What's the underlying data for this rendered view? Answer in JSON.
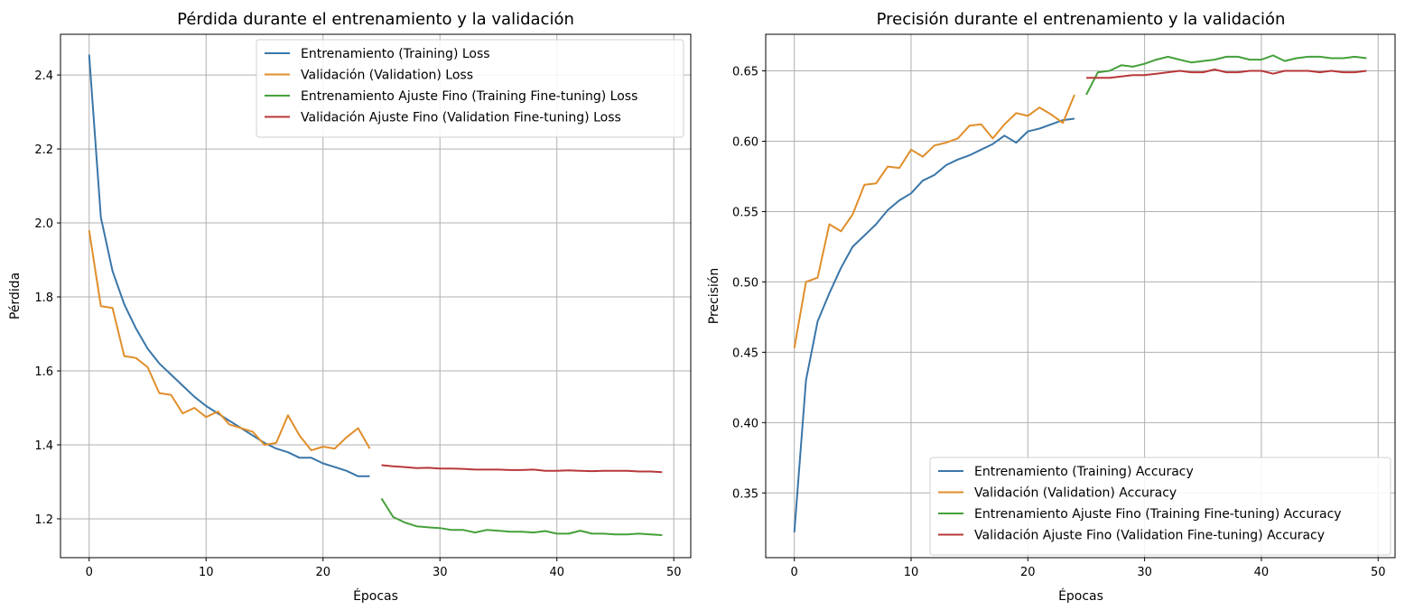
{
  "colors": {
    "train": "#3a76a8",
    "val": "#e08e2b",
    "ft_train": "#44a03a",
    "ft_val": "#b8383a",
    "grid": "#b0b0b0"
  },
  "chart_data": [
    {
      "type": "line",
      "title": "Pérdida durante el entrenamiento y la validación",
      "xlabel": "Épocas",
      "ylabel": "Pérdida",
      "xlim": [
        -2.45,
        51.45
      ],
      "ylim": [
        1.095,
        2.51
      ],
      "xticks": [
        0,
        10,
        20,
        30,
        40,
        50
      ],
      "yticks": [
        1.2,
        1.4,
        1.6,
        1.8,
        2.0,
        2.2,
        2.4
      ],
      "ytick_labels": [
        "1.2",
        "1.4",
        "1.6",
        "1.8",
        "2.0",
        "2.2",
        "2.4"
      ],
      "grid": true,
      "legend": "upper right",
      "series": [
        {
          "name": "Entrenamiento (Training) Loss",
          "color": "train",
          "x": [
            0,
            1,
            2,
            3,
            4,
            5,
            6,
            7,
            8,
            9,
            10,
            11,
            12,
            13,
            14,
            15,
            16,
            17,
            18,
            19,
            20,
            21,
            22,
            23,
            24
          ],
          "values": [
            2.455,
            2.015,
            1.87,
            1.78,
            1.715,
            1.66,
            1.62,
            1.59,
            1.56,
            1.53,
            1.505,
            1.485,
            1.465,
            1.445,
            1.425,
            1.405,
            1.39,
            1.38,
            1.365,
            1.365,
            1.35,
            1.34,
            1.33,
            1.315,
            1.315
          ]
        },
        {
          "name": "Validación (Validation) Loss",
          "color": "val",
          "x": [
            0,
            1,
            2,
            3,
            4,
            5,
            6,
            7,
            8,
            9,
            10,
            11,
            12,
            13,
            14,
            15,
            16,
            17,
            18,
            19,
            20,
            21,
            22,
            23,
            24
          ],
          "values": [
            1.98,
            1.775,
            1.77,
            1.64,
            1.635,
            1.61,
            1.54,
            1.535,
            1.485,
            1.5,
            1.475,
            1.49,
            1.455,
            1.445,
            1.435,
            1.4,
            1.405,
            1.48,
            1.425,
            1.385,
            1.395,
            1.39,
            1.42,
            1.445,
            1.39
          ]
        },
        {
          "name": "Entrenamiento Ajuste Fino (Training Fine-tuning) Loss",
          "color": "ft_train",
          "x": [
            25,
            26,
            27,
            28,
            29,
            30,
            31,
            32,
            33,
            34,
            35,
            36,
            37,
            38,
            39,
            40,
            41,
            42,
            43,
            44,
            45,
            46,
            47,
            48,
            49
          ],
          "values": [
            1.255,
            1.205,
            1.19,
            1.18,
            1.177,
            1.175,
            1.17,
            1.17,
            1.163,
            1.17,
            1.168,
            1.165,
            1.165,
            1.163,
            1.167,
            1.16,
            1.16,
            1.168,
            1.16,
            1.16,
            1.158,
            1.158,
            1.16,
            1.158,
            1.156
          ]
        },
        {
          "name": "Validación Ajuste Fino (Validation Fine-tuning) Loss",
          "color": "ft_val",
          "x": [
            25,
            26,
            27,
            28,
            29,
            30,
            31,
            32,
            33,
            34,
            35,
            36,
            37,
            38,
            39,
            40,
            41,
            42,
            43,
            44,
            45,
            46,
            47,
            48,
            49
          ],
          "values": [
            1.345,
            1.342,
            1.34,
            1.337,
            1.338,
            1.336,
            1.336,
            1.335,
            1.333,
            1.333,
            1.333,
            1.332,
            1.332,
            1.333,
            1.33,
            1.33,
            1.331,
            1.33,
            1.329,
            1.33,
            1.33,
            1.33,
            1.328,
            1.328,
            1.326
          ]
        }
      ]
    },
    {
      "type": "line",
      "title": "Precisión durante el entrenamiento y la validación",
      "xlabel": "Épocas",
      "ylabel": "Precisión",
      "xlim": [
        -2.45,
        51.45
      ],
      "ylim": [
        0.304,
        0.676
      ],
      "xticks": [
        0,
        10,
        20,
        30,
        40,
        50
      ],
      "yticks": [
        0.35,
        0.4,
        0.45,
        0.5,
        0.55,
        0.6,
        0.65
      ],
      "ytick_labels": [
        "0.35",
        "0.40",
        "0.45",
        "0.50",
        "0.55",
        "0.60",
        "0.65"
      ],
      "grid": true,
      "legend": "lower right",
      "series": [
        {
          "name": "Entrenamiento (Training) Accuracy",
          "color": "train",
          "x": [
            0,
            1,
            2,
            3,
            4,
            5,
            6,
            7,
            8,
            9,
            10,
            11,
            12,
            13,
            14,
            15,
            16,
            17,
            18,
            19,
            20,
            21,
            22,
            23,
            24
          ],
          "values": [
            0.322,
            0.43,
            0.472,
            0.492,
            0.51,
            0.525,
            0.533,
            0.541,
            0.551,
            0.558,
            0.563,
            0.572,
            0.576,
            0.583,
            0.587,
            0.59,
            0.594,
            0.598,
            0.604,
            0.599,
            0.607,
            0.609,
            0.612,
            0.615,
            0.616
          ]
        },
        {
          "name": "Validación (Validation) Accuracy",
          "color": "val",
          "x": [
            0,
            1,
            2,
            3,
            4,
            5,
            6,
            7,
            8,
            9,
            10,
            11,
            12,
            13,
            14,
            15,
            16,
            17,
            18,
            19,
            20,
            21,
            22,
            23,
            24
          ],
          "values": [
            0.453,
            0.5,
            0.503,
            0.541,
            0.536,
            0.548,
            0.569,
            0.57,
            0.582,
            0.581,
            0.594,
            0.589,
            0.597,
            0.599,
            0.602,
            0.611,
            0.612,
            0.602,
            0.612,
            0.62,
            0.618,
            0.624,
            0.619,
            0.613,
            0.633
          ]
        },
        {
          "name": "Entrenamiento Ajuste Fino (Training Fine-tuning) Accuracy",
          "color": "ft_train",
          "x": [
            25,
            26,
            27,
            28,
            29,
            30,
            31,
            32,
            33,
            34,
            35,
            36,
            37,
            38,
            39,
            40,
            41,
            42,
            43,
            44,
            45,
            46,
            47,
            48,
            49
          ],
          "values": [
            0.633,
            0.649,
            0.65,
            0.654,
            0.653,
            0.655,
            0.658,
            0.66,
            0.658,
            0.656,
            0.657,
            0.658,
            0.66,
            0.66,
            0.658,
            0.658,
            0.661,
            0.657,
            0.659,
            0.66,
            0.66,
            0.659,
            0.659,
            0.66,
            0.659
          ]
        },
        {
          "name": "Validación Ajuste Fino (Validation Fine-tuning) Accuracy",
          "color": "ft_val",
          "x": [
            25,
            26,
            27,
            28,
            29,
            30,
            31,
            32,
            33,
            34,
            35,
            36,
            37,
            38,
            39,
            40,
            41,
            42,
            43,
            44,
            45,
            46,
            47,
            48,
            49
          ],
          "values": [
            0.645,
            0.645,
            0.645,
            0.646,
            0.647,
            0.647,
            0.648,
            0.649,
            0.65,
            0.649,
            0.649,
            0.651,
            0.649,
            0.649,
            0.65,
            0.65,
            0.648,
            0.65,
            0.65,
            0.65,
            0.649,
            0.65,
            0.649,
            0.649,
            0.65
          ]
        }
      ]
    }
  ]
}
